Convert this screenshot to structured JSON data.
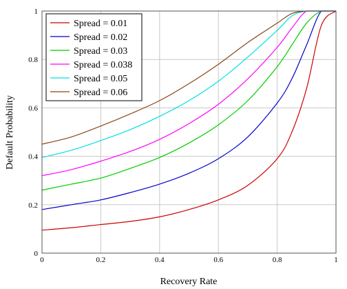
{
  "chart_data": {
    "type": "line",
    "xlabel": "Recovery Rate",
    "ylabel": "Default Probability",
    "xlim": [
      0,
      1
    ],
    "ylim": [
      0,
      1
    ],
    "xticks": [
      0,
      0.2,
      0.4,
      0.6,
      0.8,
      1
    ],
    "yticks": [
      0,
      0.2,
      0.4,
      0.6,
      0.8,
      1
    ],
    "xtick_labels": [
      "0",
      "0.2",
      "0.4",
      "0.6",
      "0.8",
      "1"
    ],
    "ytick_labels": [
      "0",
      "0.2",
      "0.4",
      "0.6",
      "0.8",
      "1"
    ],
    "grid": true,
    "legend_position": "top-left",
    "x": [
      0,
      0.1,
      0.2,
      0.3,
      0.4,
      0.5,
      0.6,
      0.7,
      0.8,
      0.85,
      0.9,
      0.95,
      1.0
    ],
    "series": [
      {
        "name": "Spread = 0.01",
        "color": "#cc0000",
        "values": [
          0.095,
          0.105,
          0.118,
          0.131,
          0.15,
          0.18,
          0.22,
          0.28,
          0.39,
          0.5,
          0.68,
          0.94,
          1.0
        ]
      },
      {
        "name": "Spread = 0.02",
        "color": "#0000cc",
        "values": [
          0.18,
          0.2,
          0.22,
          0.25,
          0.285,
          0.33,
          0.39,
          0.48,
          0.62,
          0.72,
          0.86,
          1.0,
          1.0
        ]
      },
      {
        "name": "Spread = 0.03",
        "color": "#00cc00",
        "values": [
          0.26,
          0.285,
          0.31,
          0.35,
          0.395,
          0.455,
          0.53,
          0.63,
          0.77,
          0.86,
          0.95,
          1.0,
          1.0
        ]
      },
      {
        "name": "Spread = 0.038",
        "color": "#ff00ff",
        "values": [
          0.32,
          0.345,
          0.38,
          0.42,
          0.47,
          0.535,
          0.615,
          0.72,
          0.85,
          0.93,
          1.0,
          1.0,
          1.0
        ]
      },
      {
        "name": "Spread = 0.05",
        "color": "#00e0e0",
        "values": [
          0.395,
          0.425,
          0.465,
          0.51,
          0.565,
          0.63,
          0.71,
          0.81,
          0.92,
          0.98,
          1.0,
          1.0,
          1.0
        ]
      },
      {
        "name": "Spread = 0.06",
        "color": "#8b4513",
        "values": [
          0.45,
          0.48,
          0.525,
          0.575,
          0.63,
          0.7,
          0.78,
          0.87,
          0.95,
          0.99,
          1.0,
          1.0,
          1.0
        ]
      }
    ]
  }
}
